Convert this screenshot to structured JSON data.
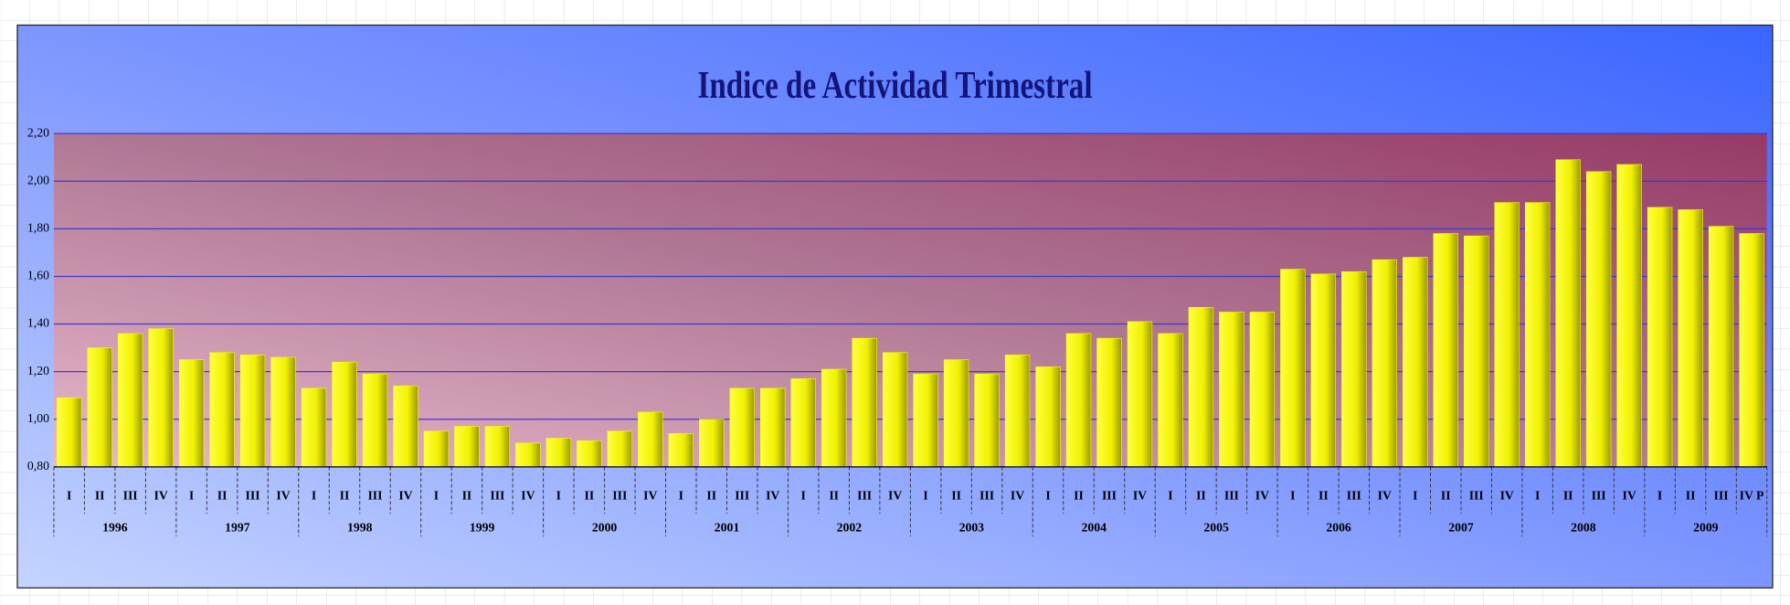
{
  "chart_data": {
    "type": "bar",
    "title": "Indice de Actividad Trimestral",
    "categories": [
      "I",
      "II",
      "III",
      "IV",
      "I",
      "II",
      "III",
      "IV",
      "I",
      "II",
      "III",
      "IV",
      "I",
      "II",
      "III",
      "IV",
      "I",
      "II",
      "III",
      "IV",
      "I",
      "II",
      "III",
      "IV",
      "I",
      "II",
      "III",
      "IV",
      "I",
      "II",
      "III",
      "IV",
      "I",
      "II",
      "III",
      "IV",
      "I",
      "II",
      "III",
      "IV",
      "I",
      "II",
      "III",
      "IV",
      "I",
      "II",
      "III",
      "IV",
      "I",
      "II",
      "III",
      "IV",
      "I",
      "II",
      "III",
      "IV P"
    ],
    "groups": [
      "1996",
      "1997",
      "1998",
      "1999",
      "2000",
      "2001",
      "2002",
      "2003",
      "2004",
      "2005",
      "2006",
      "2007",
      "2008",
      "2009"
    ],
    "values": [
      1.09,
      1.3,
      1.36,
      1.38,
      1.25,
      1.28,
      1.27,
      1.26,
      1.13,
      1.24,
      1.19,
      1.14,
      0.95,
      0.97,
      0.97,
      0.9,
      0.92,
      0.91,
      0.95,
      1.03,
      0.94,
      1.0,
      1.13,
      1.13,
      1.17,
      1.21,
      1.34,
      1.28,
      1.19,
      1.25,
      1.19,
      1.27,
      1.22,
      1.36,
      1.34,
      1.41,
      1.36,
      1.47,
      1.45,
      1.45,
      1.63,
      1.61,
      1.62,
      1.67,
      1.68,
      1.78,
      1.77,
      1.91,
      1.91,
      2.09,
      2.04,
      2.07,
      1.89,
      1.88,
      1.81,
      1.78
    ],
    "color": "#ffff00",
    "ylim": [
      0.8,
      2.2
    ],
    "yticks": [
      {
        "value": 0.8,
        "label": "0,80"
      },
      {
        "value": 1.0,
        "label": "1,00"
      },
      {
        "value": 1.2,
        "label": "1,20"
      },
      {
        "value": 1.4,
        "label": "1,40"
      },
      {
        "value": 1.6,
        "label": "1,60"
      },
      {
        "value": 1.8,
        "label": "1,80"
      },
      {
        "value": 2.0,
        "label": "2,00"
      },
      {
        "value": 2.2,
        "label": "2,20"
      }
    ],
    "grid": true
  }
}
